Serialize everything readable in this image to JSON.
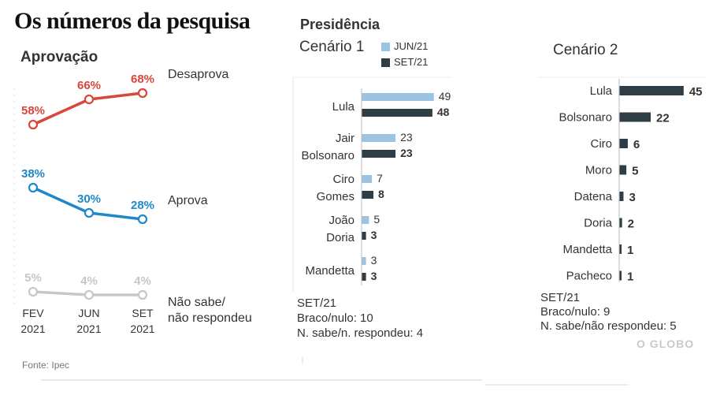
{
  "headline": "Os números da pesquisa",
  "source": "Fonte: Ipec",
  "brand": "O GLOBO",
  "colors": {
    "desaprova": "#d9463a",
    "aprova": "#1e88c8",
    "nao_sabe": "#c4c8cc",
    "jun21": "#9cc3e0",
    "set21": "#2f3d46"
  },
  "chart_data": [
    {
      "type": "line",
      "title": "Aprovação",
      "categories": [
        "FEV 2021",
        "JUN 2021",
        "SET 2021"
      ],
      "category_lines": [
        [
          "FEV",
          "2021"
        ],
        [
          "JUN",
          "2021"
        ],
        [
          "SET",
          "2021"
        ]
      ],
      "ylim": [
        0,
        75
      ],
      "grid": false,
      "series": [
        {
          "name": "Desaprova",
          "values": [
            58,
            66,
            68
          ],
          "labels": [
            "58%",
            "66%",
            "68%"
          ],
          "color": "#d9463a"
        },
        {
          "name": "Aprova",
          "values": [
            38,
            30,
            28
          ],
          "labels": [
            "38%",
            "30%",
            "28%"
          ],
          "color": "#1e88c8"
        },
        {
          "name": "Não sabe/ não respondeu",
          "name_lines": [
            "Não sabe/",
            "não respondeu"
          ],
          "values": [
            5,
            4,
            4
          ],
          "labels": [
            "5%",
            "4%",
            "4%"
          ],
          "color": "#c4c8cc"
        }
      ]
    },
    {
      "type": "bar",
      "orientation": "horizontal",
      "supertitle": "Presidência",
      "title": "Cenário 1",
      "legend": [
        "JUN/21",
        "SET/21"
      ],
      "legend_position": "top-right",
      "categories": [
        "Lula",
        "Jair Bolsonaro",
        "Ciro Gomes",
        "João Doria",
        "Mandetta"
      ],
      "series": [
        {
          "name": "JUN/21",
          "values": [
            49,
            23,
            7,
            5,
            3
          ],
          "color": "#9cc3e0"
        },
        {
          "name": "SET/21",
          "values": [
            48,
            23,
            8,
            3,
            3
          ],
          "color": "#2f3d46"
        }
      ],
      "xlim": [
        0,
        55
      ],
      "notes": [
        "SET/21",
        "Braco/nulo: 10",
        "N. sabe/n. respondeu: 4"
      ]
    },
    {
      "type": "bar",
      "orientation": "horizontal",
      "title": "Cenário 2",
      "categories": [
        "Lula",
        "Bolsonaro",
        "Ciro",
        "Moro",
        "Datena",
        "Doria",
        "Mandetta",
        "Pacheco"
      ],
      "series": [
        {
          "name": "SET/21",
          "values": [
            45,
            22,
            6,
            5,
            3,
            2,
            1,
            1
          ],
          "color": "#2f3d46"
        }
      ],
      "xlim": [
        0,
        55
      ],
      "notes": [
        "SET/21",
        "Braco/nulo: 9",
        "N. sabe/não respondeu: 5"
      ]
    }
  ]
}
